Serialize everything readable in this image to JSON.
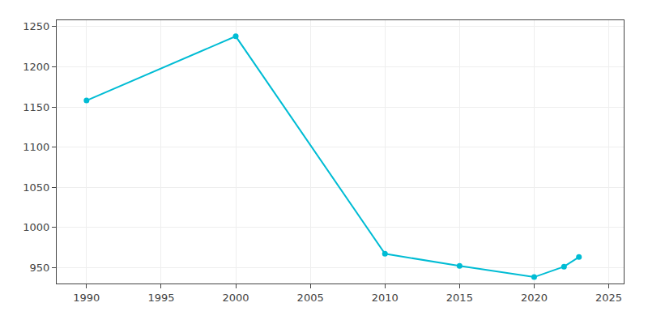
{
  "chart_data": {
    "type": "line",
    "x": [
      1990,
      2000,
      2010,
      2015,
      2020,
      2022,
      2023
    ],
    "values": [
      1158,
      1238,
      967,
      952,
      938,
      951,
      963
    ],
    "color": "#00BCD4",
    "marker": "circle",
    "line_style": "solid",
    "xlim": [
      1988,
      2026
    ],
    "ylim": [
      930,
      1258
    ],
    "xticks": [
      1990,
      1995,
      2000,
      2005,
      2010,
      2015,
      2020,
      2025
    ],
    "yticks": [
      950,
      1000,
      1050,
      1100,
      1150,
      1200,
      1250
    ],
    "grid": true
  }
}
